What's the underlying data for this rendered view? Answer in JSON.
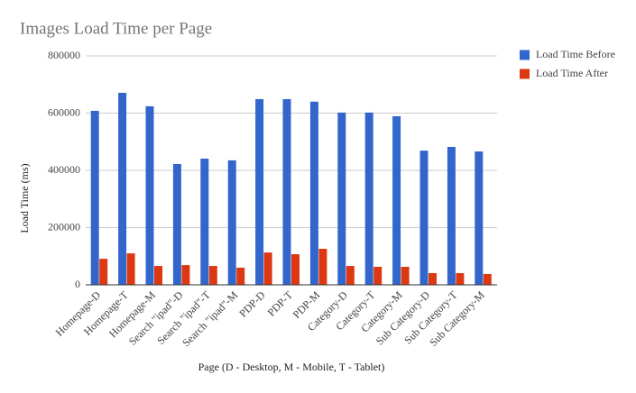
{
  "chart_data": {
    "type": "bar",
    "title": "Images Load Time per Page",
    "x_label": "Page (D - Desktop, M - Mobile, T - Tablet)",
    "y_label": "Load Time (ms)",
    "categories": [
      "Homepage-D",
      "Homepage-T",
      "Homepage-M",
      "Search \"ipad\"-D",
      "Search \"ipad\"-T",
      "Search \"ipad\"-M",
      "PDP-D",
      "PDP-T",
      "PDP-M",
      "Category-D",
      "Category-T",
      "Category-M",
      "Sub Category-D",
      "Sub Category-T",
      "Sub Category-M"
    ],
    "series": [
      {
        "name": "Load Time Before",
        "color": "#3366cc",
        "values": [
          608000,
          671000,
          624000,
          422000,
          441000,
          435000,
          649000,
          649000,
          640000,
          602000,
          602000,
          589000,
          469000,
          482000,
          466000
        ]
      },
      {
        "name": "Load Time After",
        "color": "#dc3912",
        "values": [
          91000,
          110000,
          66000,
          69000,
          66000,
          60000,
          113000,
          107000,
          126000,
          66000,
          63000,
          63000,
          41000,
          41000,
          38000
        ]
      }
    ],
    "ylim": [
      0,
      800000
    ],
    "yticks": [
      0,
      200000,
      400000,
      600000,
      800000
    ],
    "grid": true,
    "legend": "right"
  }
}
